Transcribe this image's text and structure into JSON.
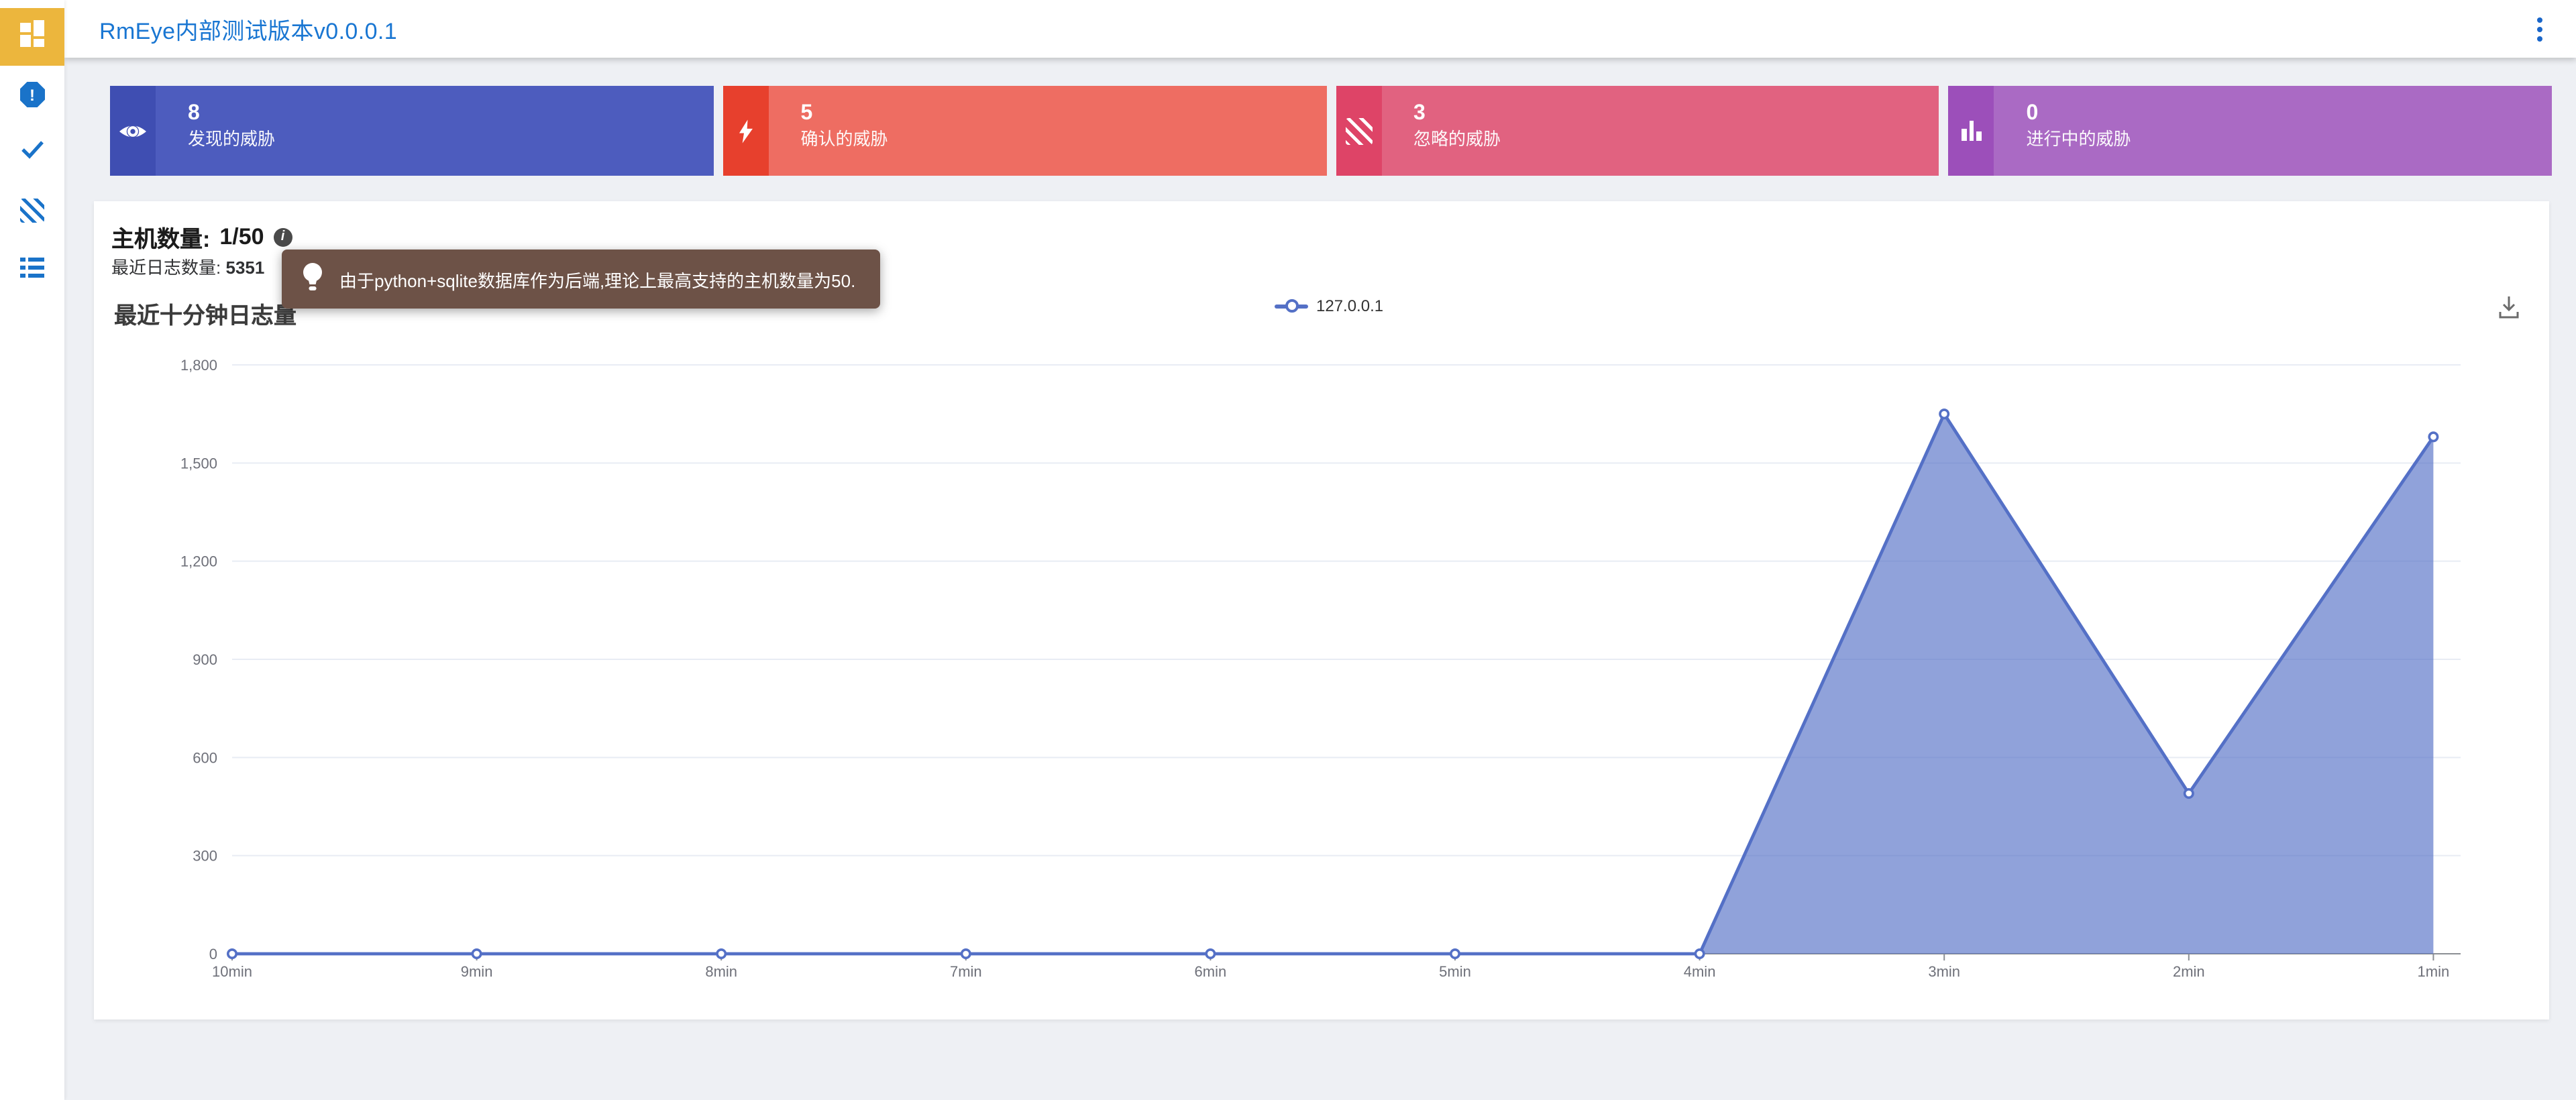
{
  "header": {
    "title": "RmEye内部测试版本v0.0.0.1",
    "title_color": "#1976d2",
    "menu_icon": "kebab-menu-icon"
  },
  "sidebar": {
    "active_bg": "#ecb63d",
    "icon_color": "#1a73c9",
    "items": [
      {
        "icon": "dashboard-grid-icon",
        "active": true
      },
      {
        "icon": "alert-octagon-icon",
        "active": false
      },
      {
        "icon": "check-icon",
        "active": false
      },
      {
        "icon": "diagonal-stripes-icon",
        "active": false
      },
      {
        "icon": "list-icon",
        "active": false
      }
    ]
  },
  "cards": [
    {
      "value": "8",
      "label": "发现的威胁",
      "icon": "eye-icon",
      "bg": "#4d5cbe",
      "accent": "#3f4eb2"
    },
    {
      "value": "5",
      "label": "确认的威胁",
      "icon": "lightning-icon",
      "bg": "#ee6d62",
      "accent": "#e7402d"
    },
    {
      "value": "3",
      "label": "忽略的威胁",
      "icon": "diagonal-stripes-icon",
      "bg": "#e16280",
      "accent": "#de4467"
    },
    {
      "value": "0",
      "label": "进行中的威胁",
      "icon": "bar-chart-icon",
      "bg": "#aa6ac4",
      "accent": "#9c4fba"
    }
  ],
  "stats": {
    "host_label": "主机数量:",
    "host_value": "1/50",
    "info_icon": "info-icon",
    "log_label": "最近日志数量:",
    "log_value": "5351"
  },
  "tooltip": {
    "icon": "lightbulb-icon",
    "bg": "#6d5247",
    "text": "由于python+sqlite数据库作为后端,理论上最高支持的主机数量为50."
  },
  "chart_data": {
    "type": "area",
    "title": "最近十分钟日志量",
    "categories": [
      "10min",
      "9min",
      "8min",
      "7min",
      "6min",
      "5min",
      "4min",
      "3min",
      "2min",
      "1min"
    ],
    "series": [
      {
        "name": "127.0.0.1",
        "values": [
          0,
          0,
          0,
          0,
          0,
          0,
          0,
          1650,
          490,
          1580
        ]
      }
    ],
    "xlabel": "",
    "ylabel": "",
    "ylim": [
      0,
      1800
    ],
    "y_tick_values": [
      0,
      300,
      600,
      900,
      1200,
      1500,
      1800
    ],
    "y_tick_labels": [
      "0",
      "300",
      "600",
      "900",
      "1,200",
      "1,500",
      "1,800"
    ],
    "line_color": "#5470c6",
    "area_color": "rgba(84,112,198,0.65)",
    "grid_color": "#e8ecf4",
    "axis_color": "#8c8f94",
    "label_color": "#6e7079",
    "grid": "horizontal-only",
    "legend_position": "top-center",
    "toolbox_icon": "download-icon"
  }
}
